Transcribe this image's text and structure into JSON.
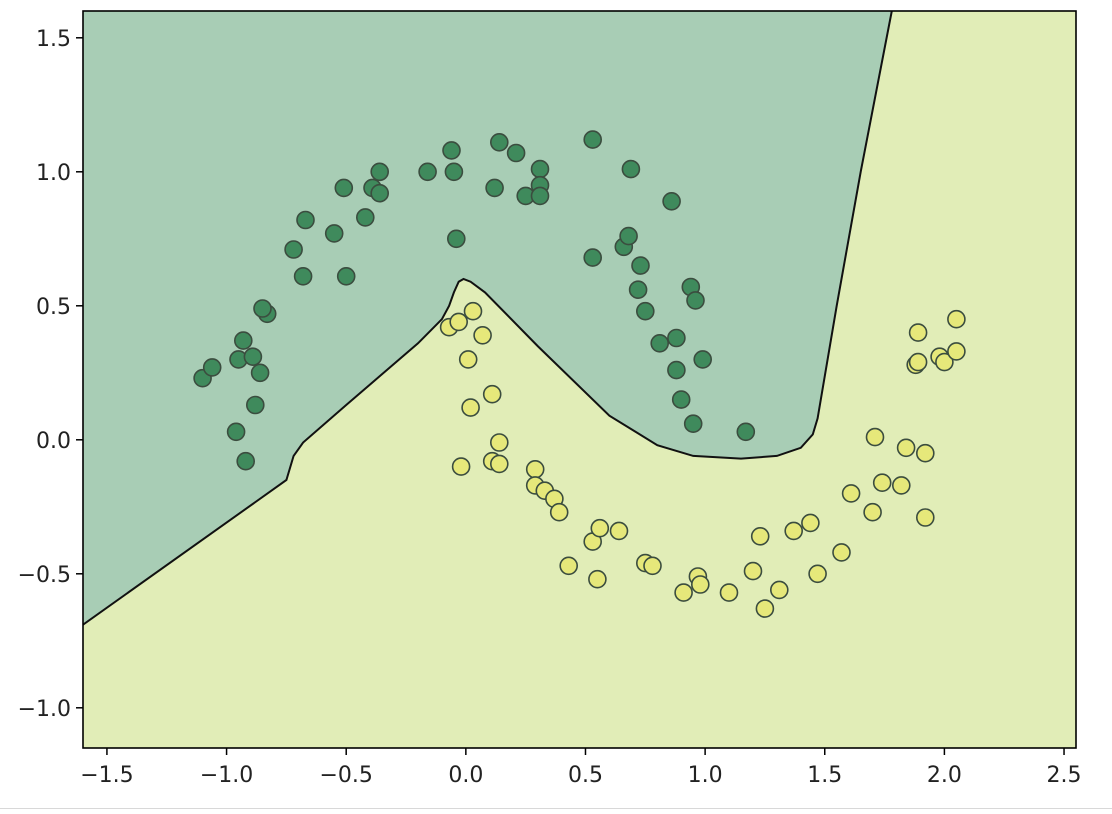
{
  "chart_data": {
    "type": "scatter",
    "title": "",
    "xlabel": "",
    "ylabel": "",
    "xlim": [
      -1.6,
      2.55
    ],
    "ylim": [
      -1.15,
      1.6
    ],
    "grid": false,
    "legend": "none",
    "x_ticks": [
      -1.5,
      -1.0,
      -0.5,
      0.0,
      0.5,
      1.0,
      1.5,
      2.0,
      2.5
    ],
    "x_tick_labels": [
      "−1.5",
      "−1.0",
      "−0.5",
      "0.0",
      "0.5",
      "1.0",
      "1.5",
      "2.0",
      "2.5"
    ],
    "y_ticks": [
      1.5,
      1.0,
      0.5,
      0.0,
      -0.5,
      -1.0
    ],
    "y_tick_labels": [
      "1.5",
      "1.0",
      "0.5",
      "0.0",
      "−0.5",
      "−1.0"
    ],
    "regions": [
      {
        "class": 0,
        "color": "#a8cdb5"
      },
      {
        "class": 1,
        "color": "#e1edb7"
      }
    ],
    "decision_boundary": [
      [
        -1.6,
        -0.69
      ],
      [
        -0.75,
        -0.15
      ],
      [
        -0.72,
        -0.06
      ],
      [
        -0.68,
        -0.01
      ],
      [
        -0.5,
        0.13
      ],
      [
        -0.2,
        0.36
      ],
      [
        -0.1,
        0.45
      ],
      [
        -0.07,
        0.5
      ],
      [
        -0.05,
        0.55
      ],
      [
        -0.03,
        0.59
      ],
      [
        -0.01,
        0.6
      ],
      [
        0.02,
        0.59
      ],
      [
        0.08,
        0.55
      ],
      [
        0.3,
        0.35
      ],
      [
        0.6,
        0.09
      ],
      [
        0.8,
        -0.02
      ],
      [
        0.95,
        -0.06
      ],
      [
        1.15,
        -0.07
      ],
      [
        1.3,
        -0.06
      ],
      [
        1.4,
        -0.03
      ],
      [
        1.45,
        0.02
      ],
      [
        1.47,
        0.08
      ],
      [
        1.55,
        0.5
      ],
      [
        1.65,
        1.0
      ],
      [
        1.78,
        1.6
      ]
    ],
    "series": [
      {
        "class": 0,
        "color": "#3f8a5c",
        "points": [
          [
            -1.1,
            0.23
          ],
          [
            -1.06,
            0.27
          ],
          [
            -0.93,
            0.37
          ],
          [
            -0.95,
            0.3
          ],
          [
            -0.89,
            0.31
          ],
          [
            -0.86,
            0.25
          ],
          [
            -0.83,
            0.47
          ],
          [
            -0.85,
            0.49
          ],
          [
            -0.88,
            0.13
          ],
          [
            -0.96,
            0.03
          ],
          [
            -0.92,
            -0.08
          ],
          [
            -0.72,
            0.71
          ],
          [
            -0.67,
            0.82
          ],
          [
            -0.68,
            0.61
          ],
          [
            -0.55,
            0.77
          ],
          [
            -0.5,
            0.61
          ],
          [
            -0.51,
            0.94
          ],
          [
            -0.42,
            0.83
          ],
          [
            -0.39,
            0.94
          ],
          [
            -0.36,
            1.0
          ],
          [
            -0.36,
            0.92
          ],
          [
            -0.16,
            1.0
          ],
          [
            -0.06,
            1.08
          ],
          [
            -0.05,
            1.0
          ],
          [
            -0.04,
            0.75
          ],
          [
            0.12,
            0.94
          ],
          [
            0.14,
            1.11
          ],
          [
            0.21,
            1.07
          ],
          [
            0.25,
            0.91
          ],
          [
            0.31,
            1.01
          ],
          [
            0.31,
            0.95
          ],
          [
            0.31,
            0.91
          ],
          [
            0.53,
            1.12
          ],
          [
            0.53,
            0.68
          ],
          [
            0.69,
            1.01
          ],
          [
            0.66,
            0.72
          ],
          [
            0.68,
            0.76
          ],
          [
            0.73,
            0.65
          ],
          [
            0.72,
            0.56
          ],
          [
            0.75,
            0.48
          ],
          [
            0.86,
            0.89
          ],
          [
            0.81,
            0.36
          ],
          [
            0.88,
            0.38
          ],
          [
            0.88,
            0.26
          ],
          [
            0.9,
            0.15
          ],
          [
            0.94,
            0.57
          ],
          [
            0.96,
            0.52
          ],
          [
            0.99,
            0.3
          ],
          [
            0.95,
            0.06
          ],
          [
            1.17,
            0.03
          ]
        ]
      },
      {
        "class": 1,
        "color": "#e6e87a",
        "points": [
          [
            -0.07,
            0.42
          ],
          [
            -0.03,
            0.44
          ],
          [
            0.03,
            0.48
          ],
          [
            0.07,
            0.39
          ],
          [
            0.01,
            0.3
          ],
          [
            0.11,
            0.17
          ],
          [
            0.02,
            0.12
          ],
          [
            0.14,
            -0.01
          ],
          [
            -0.02,
            -0.1
          ],
          [
            0.11,
            -0.08
          ],
          [
            0.14,
            -0.09
          ],
          [
            0.29,
            -0.11
          ],
          [
            0.29,
            -0.17
          ],
          [
            0.33,
            -0.19
          ],
          [
            0.37,
            -0.22
          ],
          [
            0.39,
            -0.27
          ],
          [
            0.43,
            -0.47
          ],
          [
            0.53,
            -0.38
          ],
          [
            0.56,
            -0.33
          ],
          [
            0.64,
            -0.34
          ],
          [
            0.55,
            -0.52
          ],
          [
            0.75,
            -0.46
          ],
          [
            0.78,
            -0.47
          ],
          [
            0.91,
            -0.57
          ],
          [
            0.97,
            -0.51
          ],
          [
            0.98,
            -0.54
          ],
          [
            1.1,
            -0.57
          ],
          [
            1.2,
            -0.49
          ],
          [
            1.23,
            -0.36
          ],
          [
            1.25,
            -0.63
          ],
          [
            1.31,
            -0.56
          ],
          [
            1.37,
            -0.34
          ],
          [
            1.44,
            -0.31
          ],
          [
            1.47,
            -0.5
          ],
          [
            1.57,
            -0.42
          ],
          [
            1.61,
            -0.2
          ],
          [
            1.7,
            -0.27
          ],
          [
            1.71,
            0.01
          ],
          [
            1.74,
            -0.16
          ],
          [
            1.82,
            -0.17
          ],
          [
            1.84,
            -0.03
          ],
          [
            1.92,
            -0.05
          ],
          [
            1.92,
            -0.29
          ],
          [
            1.89,
            0.4
          ],
          [
            1.88,
            0.28
          ],
          [
            1.89,
            0.29
          ],
          [
            1.98,
            0.31
          ],
          [
            2.0,
            0.29
          ],
          [
            2.05,
            0.33
          ],
          [
            2.05,
            0.45
          ]
        ]
      }
    ]
  }
}
